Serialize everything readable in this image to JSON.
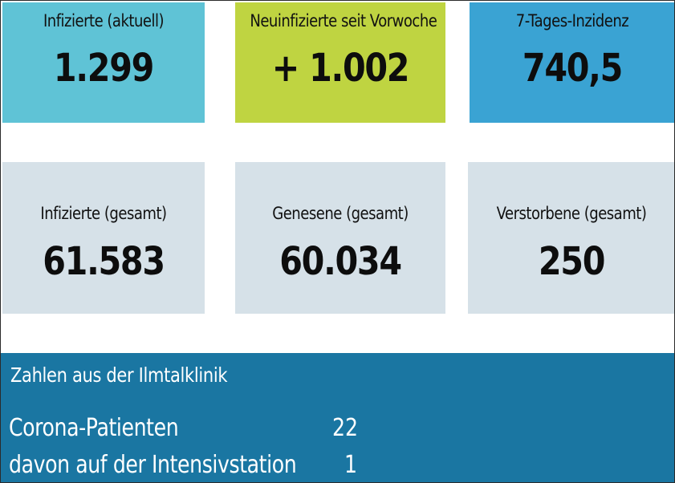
{
  "tiles_row1": [
    {
      "label": "Infizierte (aktuell)",
      "value": "1.299",
      "color": "#5fc3d6"
    },
    {
      "label": "Neuinfizierte seit Vorwoche",
      "value": "+ 1.002",
      "color": "#bfd441"
    },
    {
      "label": "7-Tages-Inzidenz",
      "value": "740,5",
      "color": "#3aa3d3"
    }
  ],
  "tiles_row2": [
    {
      "label": "Infizierte (gesamt)",
      "value": "61.583",
      "color": "#d6e1e8"
    },
    {
      "label": "Genesene (gesamt)",
      "value": "60.034",
      "color": "#d6e1e8"
    },
    {
      "label": "Verstorbene (gesamt)",
      "value": "250",
      "color": "#d6e1e8"
    }
  ],
  "clinic": {
    "title": "Zahlen aus der Ilmtalklinik",
    "rows": [
      {
        "label": "Corona-Patienten",
        "value": "22"
      },
      {
        "label": "davon auf der Intensivstation",
        "value": "1"
      }
    ],
    "color": "#1a76a2"
  }
}
